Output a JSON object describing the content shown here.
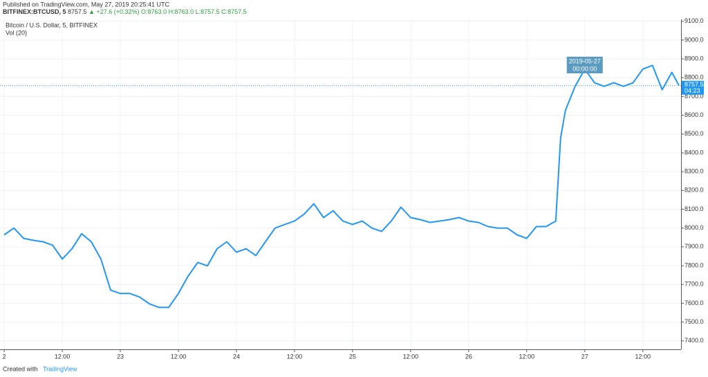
{
  "header": {
    "published": "Published on TradingView.com, May 27, 2019 20:25:41 UTC",
    "symbol": "BITFINEX:BTCUSD, 5",
    "price": "8757.5",
    "change": "▲ +27.6 (+0.32%)",
    "ohlc": "O:8763.0 H:8763.0 L:8757.5 C:8757.5",
    "series_title": "Bitcoin / U.S. Dollar, 5, BITFINEX",
    "volume_study": "Vol (20)"
  },
  "footer": {
    "created": "Created with",
    "brand": "TradingView"
  },
  "chart_data": {
    "type": "line",
    "color": "#2196f3",
    "grid": true,
    "x": [
      0,
      2,
      4,
      6,
      8,
      10,
      12,
      14,
      16,
      18,
      20,
      22,
      24,
      26,
      28,
      30,
      32,
      34,
      36,
      38,
      40,
      42,
      44,
      46,
      48,
      50,
      52,
      54,
      56,
      58,
      60,
      62,
      64,
      66,
      68,
      70,
      72,
      74,
      76,
      78,
      80,
      82,
      84,
      86,
      88,
      90,
      92,
      94,
      96,
      98,
      100,
      102,
      104,
      106,
      108,
      110,
      112,
      114,
      115,
      116,
      118,
      120,
      122,
      124,
      126,
      128,
      130,
      132,
      134,
      136,
      138,
      139.5
    ],
    "series": [
      {
        "name": "Bitcoin / U.S. Dollar, 5, BITFINEX",
        "color": "#2196f3",
        "values": [
          7964,
          8000,
          7945,
          7935,
          7927,
          7909,
          7835,
          7890,
          7970,
          7927,
          7835,
          7670,
          7652,
          7652,
          7633,
          7597,
          7578,
          7578,
          7652,
          7744,
          7817,
          7799,
          7890,
          7927,
          7872,
          7890,
          7854,
          7927,
          8000,
          8019,
          8037,
          8074,
          8129,
          8056,
          8092,
          8037,
          8019,
          8037,
          8000,
          7982,
          8037,
          8111,
          8056,
          8045,
          8030,
          8037,
          8045,
          8056,
          8037,
          8030,
          8008,
          8000,
          8000,
          7964,
          7945,
          8008,
          8008,
          8037,
          8479,
          8626,
          8754,
          8846,
          8773,
          8754,
          8773,
          8754,
          8773,
          8846,
          8865,
          8736,
          8828,
          8757.5
        ]
      }
    ],
    "xlim": [
      -0.3,
      139.9
    ],
    "xticks": [
      {
        "value": 0,
        "label": "2"
      },
      {
        "value": 12,
        "label": "12:00"
      },
      {
        "value": 24,
        "label": "23"
      },
      {
        "value": 36,
        "label": "12:00"
      },
      {
        "value": 48,
        "label": "24"
      },
      {
        "value": 60,
        "label": "12:00"
      },
      {
        "value": 72,
        "label": "25"
      },
      {
        "value": 84,
        "label": "12:00"
      },
      {
        "value": 96,
        "label": "26"
      },
      {
        "value": 108,
        "label": "12:00"
      },
      {
        "value": 120,
        "label": "27"
      },
      {
        "value": 132,
        "label": "12:00"
      }
    ],
    "ylim": [
      7355,
      9110
    ],
    "yticks": [
      {
        "value": 7400,
        "label": "7400.0"
      },
      {
        "value": 7500,
        "label": "7500.0"
      },
      {
        "value": 7600,
        "label": "7600.0"
      },
      {
        "value": 7700,
        "label": "7700.0"
      },
      {
        "value": 7800,
        "label": "7800.0"
      },
      {
        "value": 7900,
        "label": "7900.0"
      },
      {
        "value": 8000,
        "label": "8000.0"
      },
      {
        "value": 8100,
        "label": "8100.0"
      },
      {
        "value": 8200,
        "label": "8200.0"
      },
      {
        "value": 8300,
        "label": "8300.0"
      },
      {
        "value": 8400,
        "label": "8400.0"
      },
      {
        "value": 8500,
        "label": "8500.0"
      },
      {
        "value": 8600,
        "label": "8600.0"
      },
      {
        "value": 8700,
        "label": "8700.0"
      },
      {
        "value": 8800,
        "label": "8800.0"
      },
      {
        "value": 8900,
        "label": "8900.0"
      },
      {
        "value": 9000,
        "label": "9000.0"
      },
      {
        "value": 9100,
        "label": "9100.0"
      }
    ],
    "last_price": 8757.5,
    "countdown": "04:23",
    "crosshair": {
      "x": 120,
      "date": "2019-05-27",
      "time": "00:00:00"
    }
  }
}
